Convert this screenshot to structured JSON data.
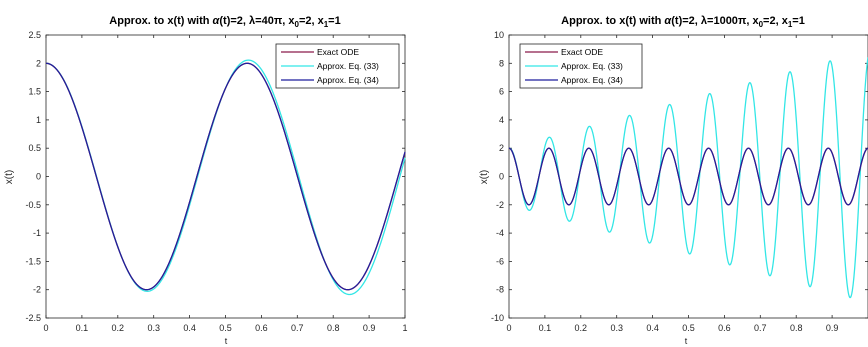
{
  "chart_data": [
    {
      "type": "line",
      "title_main": "Approx. to x(t) with ",
      "title_alpha": "α",
      "title_mid": "(t)=2, ",
      "title_lambda": "λ",
      "title_lambda_val": "=40",
      "title_pi": "π",
      "title_x0": ", x",
      "title_x0_sub": "0",
      "title_x0_val": "=2, x",
      "title_x1_sub": "1",
      "title_x1_val": "=1",
      "xlabel": "t",
      "ylabel": "x(t)",
      "xlim": [
        0,
        1
      ],
      "ylim": [
        -2.5,
        2.5
      ],
      "xticks": [
        "0",
        "0.1",
        "0.2",
        "0.3",
        "0.4",
        "0.5",
        "0.6",
        "0.7",
        "0.8",
        "0.9",
        "1"
      ],
      "yticks": [
        "-2.5",
        "-2",
        "-1.5",
        "-1",
        "-0.5",
        "0",
        "0.5",
        "1",
        "1.5",
        "2",
        "2.5"
      ],
      "grid": false,
      "legend_position": "top-right",
      "model": {
        "omega": 11.21,
        "amp_start": 2.0,
        "amp_end_exact": 2.0,
        "amp_end_33": 2.1
      },
      "series": [
        {
          "name": "Exact ODE",
          "color": "#8b1a4a"
        },
        {
          "name": "Approx. Eq. (33)",
          "color": "#33e6e6"
        },
        {
          "name": "Approx. Eq. (34)",
          "color": "#1f1f9e"
        }
      ]
    },
    {
      "type": "line",
      "title_main": "Approx. to x(t) with ",
      "title_alpha": "α",
      "title_mid": "(t)=2, ",
      "title_lambda": "λ",
      "title_lambda_val": "=1000",
      "title_pi": "π",
      "title_x0": ", x",
      "title_x0_sub": "0",
      "title_x0_val": "=2, x",
      "title_x1_sub": "1",
      "title_x1_val": "=1",
      "xlabel": "t",
      "ylabel": "x(t)",
      "xlim": [
        0,
        1
      ],
      "ylim": [
        -10,
        10
      ],
      "xticks": [
        "0",
        "0.1",
        "0.2",
        "0.3",
        "0.4",
        "0.5",
        "0.6",
        "0.7",
        "0.8",
        "0.9"
      ],
      "yticks": [
        "-10",
        "-8",
        "-6",
        "-4",
        "-2",
        "0",
        "2",
        "4",
        "6",
        "8",
        "10"
      ],
      "grid": false,
      "legend_position": "top-right",
      "model": {
        "omega": 56.5,
        "amp_start": 2.0,
        "amp_end_exact": 2.0,
        "amp_end_33": 8.9
      },
      "series": [
        {
          "name": "Exact ODE",
          "color": "#8b1a4a"
        },
        {
          "name": "Approx. Eq. (33)",
          "color": "#33e6e6"
        },
        {
          "name": "Approx. Eq. (34)",
          "color": "#1f1f9e"
        }
      ]
    }
  ]
}
